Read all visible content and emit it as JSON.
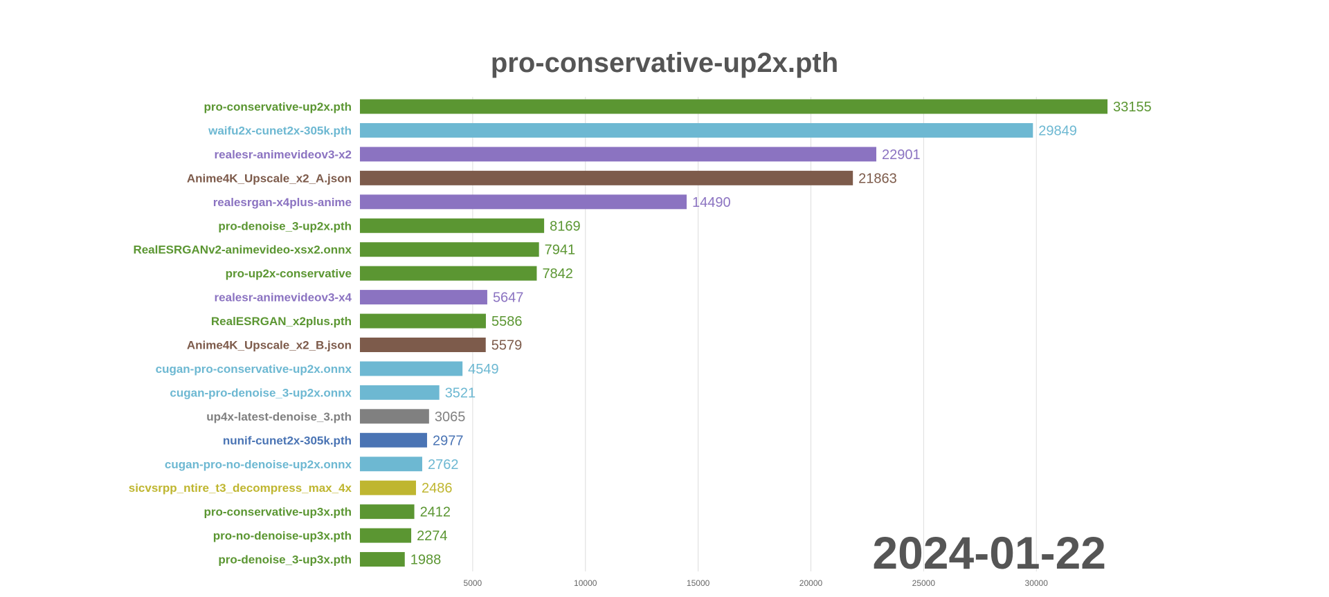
{
  "chart_data": {
    "type": "bar",
    "orientation": "horizontal",
    "title": "pro-conservative-up2x.pth",
    "date": "2024-01-22",
    "xlabel": "",
    "ylabel": "",
    "xlim": [
      0,
      35000
    ],
    "x_ticks": [
      5000,
      10000,
      15000,
      20000,
      25000,
      30000
    ],
    "grid": true,
    "bars": [
      {
        "label": "pro-conservative-up2x.pth",
        "value": 33155,
        "color": "#5b9632"
      },
      {
        "label": "waifu2x-cunet2x-305k.pth",
        "value": 29849,
        "color": "#6db8d2"
      },
      {
        "label": "realesr-animevideov3-x2",
        "value": 22901,
        "color": "#8b73c1"
      },
      {
        "label": "Anime4K_Upscale_x2_A.json",
        "value": 21863,
        "color": "#7d5b4b"
      },
      {
        "label": "realesrgan-x4plus-anime",
        "value": 14490,
        "color": "#8b73c1"
      },
      {
        "label": "pro-denoise_3-up2x.pth",
        "value": 8169,
        "color": "#5b9632"
      },
      {
        "label": "RealESRGANv2-animevideo-xsx2.onnx",
        "value": 7941,
        "color": "#5b9632"
      },
      {
        "label": "pro-up2x-conservative",
        "value": 7842,
        "color": "#5b9632"
      },
      {
        "label": "realesr-animevideov3-x4",
        "value": 5647,
        "color": "#8b73c1"
      },
      {
        "label": "RealESRGAN_x2plus.pth",
        "value": 5586,
        "color": "#5b9632"
      },
      {
        "label": "Anime4K_Upscale_x2_B.json",
        "value": 5579,
        "color": "#7d5b4b"
      },
      {
        "label": "cugan-pro-conservative-up2x.onnx",
        "value": 4549,
        "color": "#6db8d2"
      },
      {
        "label": "cugan-pro-denoise_3-up2x.onnx",
        "value": 3521,
        "color": "#6db8d2"
      },
      {
        "label": "up4x-latest-denoise_3.pth",
        "value": 3065,
        "color": "#808080"
      },
      {
        "label": "nunif-cunet2x-305k.pth",
        "value": 2977,
        "color": "#4a74b4"
      },
      {
        "label": "cugan-pro-no-denoise-up2x.onnx",
        "value": 2762,
        "color": "#6db8d2"
      },
      {
        "label": "sicvsrpp_ntire_t3_decompress_max_4x",
        "value": 2486,
        "color": "#bfb630"
      },
      {
        "label": "pro-conservative-up3x.pth",
        "value": 2412,
        "color": "#5b9632"
      },
      {
        "label": "pro-no-denoise-up3x.pth",
        "value": 2274,
        "color": "#5b9632"
      },
      {
        "label": "pro-denoise_3-up3x.pth",
        "value": 1988,
        "color": "#5b9632"
      }
    ]
  }
}
